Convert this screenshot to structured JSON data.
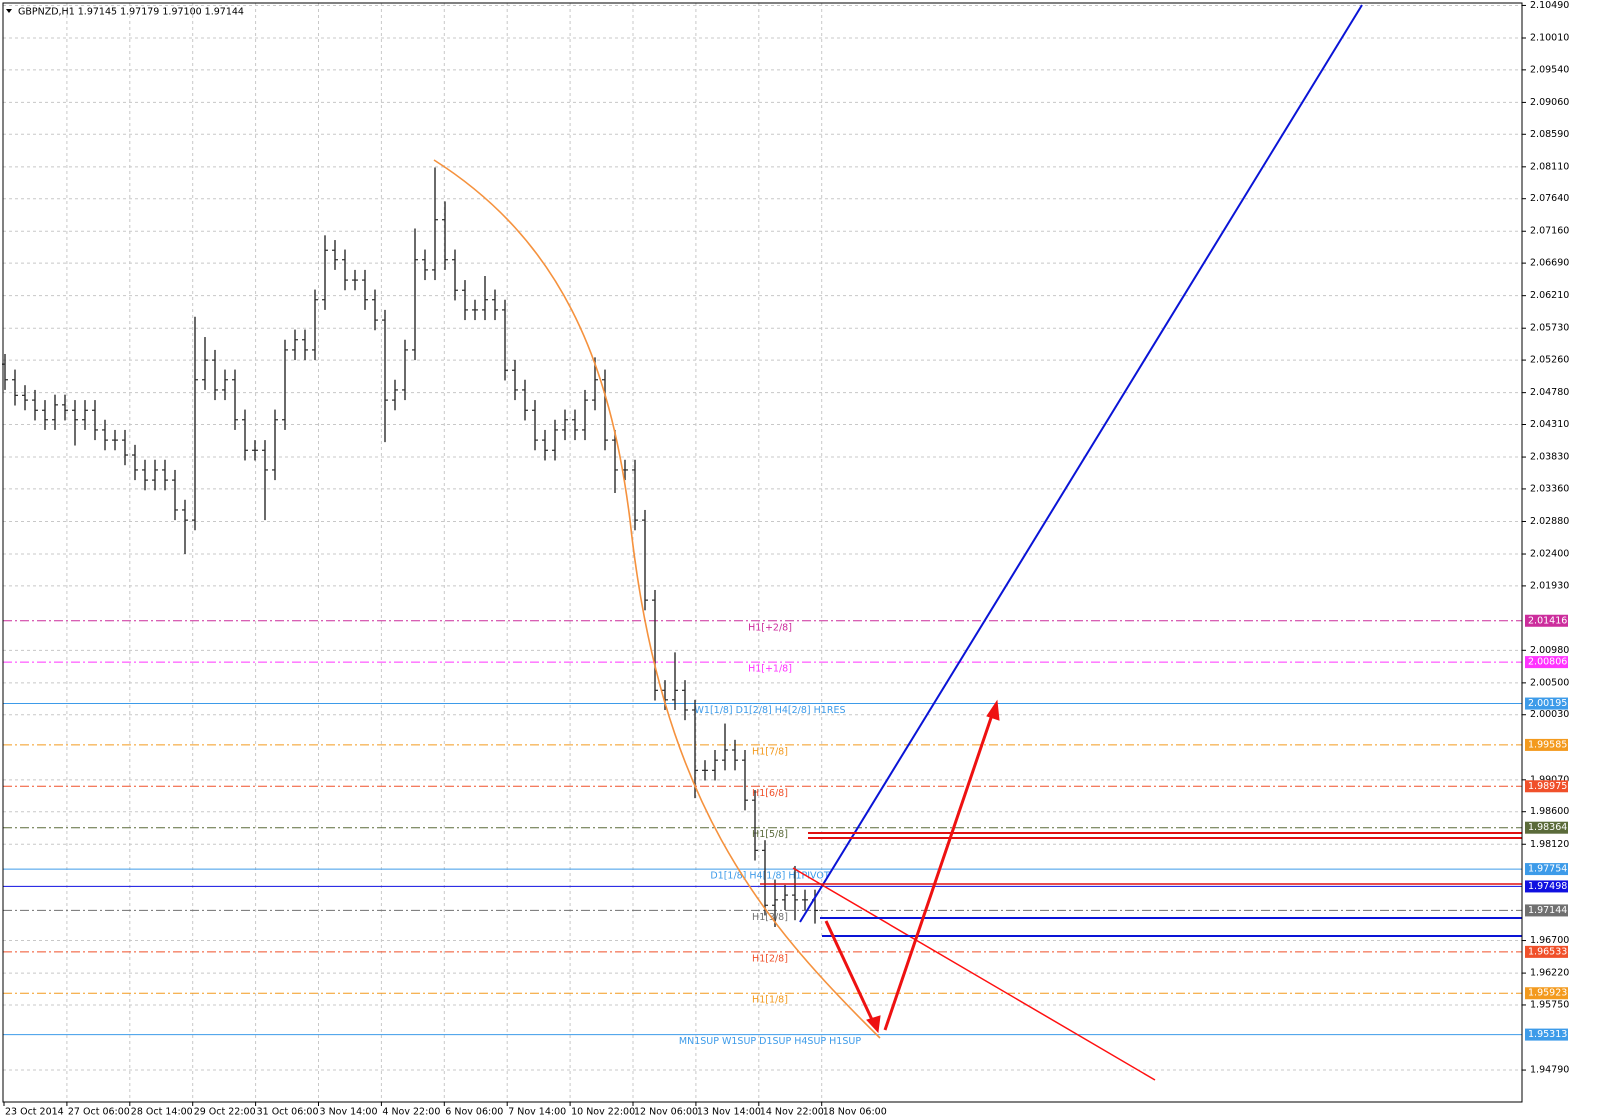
{
  "chart_data": {
    "type": "ohlc",
    "header": "GBPNZD,H1  1.97145 1.97179 1.97100 1.97144",
    "color": "#2b2b2b",
    "grid": true,
    "ylim": [
      1.94319,
      2.10526
    ],
    "yticks": [
      {
        "value": 2.1049,
        "label": "2.10490"
      },
      {
        "value": 2.1001,
        "label": "2.10010"
      },
      {
        "value": 2.0954,
        "label": "2.09540"
      },
      {
        "value": 2.0906,
        "label": "2.09060"
      },
      {
        "value": 2.0859,
        "label": "2.08590"
      },
      {
        "value": 2.0811,
        "label": "2.08110"
      },
      {
        "value": 2.0764,
        "label": "2.07640"
      },
      {
        "value": 2.0716,
        "label": "2.07160"
      },
      {
        "value": 2.0669,
        "label": "2.06690"
      },
      {
        "value": 2.0621,
        "label": "2.06210"
      },
      {
        "value": 2.0573,
        "label": "2.05730"
      },
      {
        "value": 2.0526,
        "label": "2.05260"
      },
      {
        "value": 2.0478,
        "label": "2.04780"
      },
      {
        "value": 2.0431,
        "label": "2.04310"
      },
      {
        "value": 2.0383,
        "label": "2.03830"
      },
      {
        "value": 2.0336,
        "label": "2.03360"
      },
      {
        "value": 2.0288,
        "label": "2.02880"
      },
      {
        "value": 2.024,
        "label": "2.02400"
      },
      {
        "value": 2.0193,
        "label": "2.01930"
      },
      {
        "value": 2.0098,
        "label": "2.00980"
      },
      {
        "value": 2.005,
        "label": "2.00500"
      },
      {
        "value": 2.0003,
        "label": "2.00030"
      },
      {
        "value": 1.9907,
        "label": "1.99070"
      },
      {
        "value": 1.986,
        "label": "1.98600"
      },
      {
        "value": 1.9812,
        "label": "1.98120"
      },
      {
        "value": 1.967,
        "label": "1.96700"
      },
      {
        "value": 1.9622,
        "label": "1.96220"
      },
      {
        "value": 1.9575,
        "label": "1.95750"
      },
      {
        "value": 1.9479,
        "label": "1.94790"
      }
    ],
    "x_labels": [
      "23 Oct 2014",
      "27 Oct 06:00",
      "28 Oct 14:00",
      "29 Oct 22:00",
      "31 Oct 06:00",
      "3 Nov 14:00",
      "4 Nov 22:00",
      "6 Nov 06:00",
      "7 Nov 14:00",
      "10 Nov 22:00",
      "12 Nov 06:00",
      "13 Nov 14:00",
      "14 Nov 22:00",
      "18 Nov 06:00"
    ],
    "open": [
      2.052,
      2.0497,
      2.0474,
      2.0467,
      2.0452,
      2.0438,
      2.046,
      2.0452,
      2.0438,
      2.0452,
      2.0423,
      2.0408,
      2.0408,
      2.0386,
      2.0364,
      2.0349,
      2.0364,
      2.0349,
      2.0305,
      2.029,
      2.0497,
      2.0526,
      2.0482,
      2.0497,
      2.0438,
      2.0393,
      2.0393,
      2.0364,
      2.0438,
      2.0541,
      2.0556,
      2.0541,
      2.0615,
      2.0688,
      2.0674,
      2.0644,
      2.0644,
      2.0615,
      2.0585,
      2.0467,
      2.0482,
      2.0541,
      2.0674,
      2.0659,
      2.0733,
      2.0674,
      2.0629,
      2.06,
      2.06,
      2.0615,
      2.06,
      2.0511,
      2.0482,
      2.0452,
      2.0408,
      2.0393,
      2.0423,
      2.0438,
      2.0423,
      2.0467,
      2.0497,
      2.0408,
      2.0364,
      2.0364,
      2.029,
      2.0172,
      2.0039,
      2.0025,
      2.0039,
      2.001,
      1.9921,
      1.9921,
      1.9936,
      1.9951,
      1.9936,
      1.9877,
      1.9803,
      1.9722,
      1.973,
      1.9737,
      1.973,
      1.973
    ],
    "high": [
      2.0535,
      2.0512,
      2.0489,
      2.0482,
      2.0467,
      2.0475,
      2.0475,
      2.0467,
      2.0467,
      2.0467,
      2.0438,
      2.0423,
      2.0423,
      2.0401,
      2.0379,
      2.0379,
      2.0379,
      2.0364,
      2.032,
      2.059,
      2.056,
      2.0541,
      2.0512,
      2.0512,
      2.0453,
      2.0408,
      2.0408,
      2.0453,
      2.0556,
      2.0571,
      2.0571,
      2.063,
      2.071,
      2.0703,
      2.0689,
      2.0659,
      2.0659,
      2.063,
      2.06,
      2.0497,
      2.0556,
      2.072,
      2.0689,
      2.081,
      2.076,
      2.0689,
      2.0644,
      2.0615,
      2.065,
      2.063,
      2.0615,
      2.0526,
      2.0497,
      2.0467,
      2.0423,
      2.0438,
      2.0453,
      2.0453,
      2.0482,
      2.053,
      2.0512,
      2.0423,
      2.0379,
      2.0379,
      2.0305,
      2.0187,
      2.0054,
      2.0095,
      2.0054,
      2.0025,
      1.9936,
      1.9951,
      1.999,
      1.9966,
      1.9951,
      1.9892,
      1.9818,
      1.976,
      1.9752,
      1.978,
      1.9745,
      1.9745
    ],
    "low": [
      2.0482,
      2.0459,
      2.0452,
      2.0437,
      2.0423,
      2.0423,
      2.0437,
      2.04,
      2.0423,
      2.0408,
      2.0393,
      2.0393,
      2.0371,
      2.0349,
      2.0334,
      2.0334,
      2.0334,
      2.029,
      2.024,
      2.0275,
      2.0482,
      2.0467,
      2.0467,
      2.0423,
      2.0378,
      2.0378,
      2.029,
      2.0349,
      2.0423,
      2.0526,
      2.0526,
      2.0526,
      2.06,
      2.0659,
      2.0629,
      2.0629,
      2.06,
      2.057,
      2.0405,
      2.0452,
      2.0467,
      2.0526,
      2.0644,
      2.0644,
      2.0659,
      2.0614,
      2.0585,
      2.0585,
      2.0585,
      2.0585,
      2.0496,
      2.0467,
      2.0437,
      2.0393,
      2.0378,
      2.0378,
      2.0408,
      2.0408,
      2.0408,
      2.0452,
      2.0393,
      2.033,
      2.0349,
      2.0275,
      2.0157,
      2.0024,
      2.001,
      2.001,
      1.9995,
      1.988,
      1.9906,
      1.9906,
      1.9921,
      1.9921,
      1.9862,
      1.9788,
      1.9707,
      1.969,
      1.9715,
      1.97,
      1.9715,
      1.9695
    ],
    "close": [
      2.0497,
      2.0474,
      2.0467,
      2.0452,
      2.0438,
      2.046,
      2.0452,
      2.0438,
      2.0452,
      2.0423,
      2.0408,
      2.0408,
      2.0386,
      2.0364,
      2.0349,
      2.0364,
      2.0349,
      2.0305,
      2.029,
      2.0497,
      2.0526,
      2.0482,
      2.0497,
      2.0438,
      2.0393,
      2.0393,
      2.0364,
      2.0438,
      2.0541,
      2.0556,
      2.0541,
      2.0615,
      2.0688,
      2.0674,
      2.0644,
      2.0644,
      2.0615,
      2.0585,
      2.0467,
      2.0482,
      2.0541,
      2.0674,
      2.0659,
      2.0733,
      2.0674,
      2.0629,
      2.06,
      2.06,
      2.0615,
      2.06,
      2.0511,
      2.0482,
      2.0452,
      2.0408,
      2.0393,
      2.0423,
      2.0438,
      2.0423,
      2.0467,
      2.0497,
      2.0408,
      2.0364,
      2.0364,
      2.029,
      2.0172,
      2.0039,
      2.0025,
      2.0039,
      2.001,
      1.9921,
      1.9921,
      1.9936,
      1.9951,
      1.9936,
      1.9877,
      1.9803,
      1.9722,
      1.973,
      1.9737,
      1.973,
      1.973,
      1.97144
    ],
    "levels": [
      {
        "value": 2.01416,
        "text": "H1[+2/8]",
        "color": "#cc2d9c",
        "style": "dashdot"
      },
      {
        "value": 2.00806,
        "text": "H1[+1/8]",
        "color": "#ff33ff",
        "style": "dashdot"
      },
      {
        "value": 2.00195,
        "text": "W1[1/8] D1[2/8] H4[2/8] H1RES",
        "color": "#3d9be9",
        "style": "solid"
      },
      {
        "value": 1.99585,
        "text": "H1[7/8]",
        "color": "#f39a1e",
        "style": "dashdot"
      },
      {
        "value": 1.98975,
        "text": "H1[6/8]",
        "color": "#f0502a",
        "style": "dashdot"
      },
      {
        "value": 1.98364,
        "text": "H1[5/8]",
        "color": "#5b6b3a",
        "style": "dashdot"
      },
      {
        "value": 1.97754,
        "text": "D1[1/8] H4[1/8] H1PIVOT",
        "color": "#3d9be9",
        "style": "solid"
      },
      {
        "value": 1.97498,
        "color": "#1010e0",
        "style": "solid"
      },
      {
        "value": 1.97144,
        "text": "H1[3/8]",
        "color": "#707070",
        "style": "dashdot"
      },
      {
        "value": 1.96533,
        "text": "H1[2/8]",
        "color": "#f0502a",
        "style": "dashdot"
      },
      {
        "value": 1.95923,
        "text": "H1[1/8]",
        "color": "#f39a1e",
        "style": "dashdot"
      },
      {
        "value": 1.95313,
        "text": "MN1SUP W1SUP D1SUP H4SUP H1SUP",
        "color": "#3d9be9",
        "style": "solid"
      }
    ]
  }
}
